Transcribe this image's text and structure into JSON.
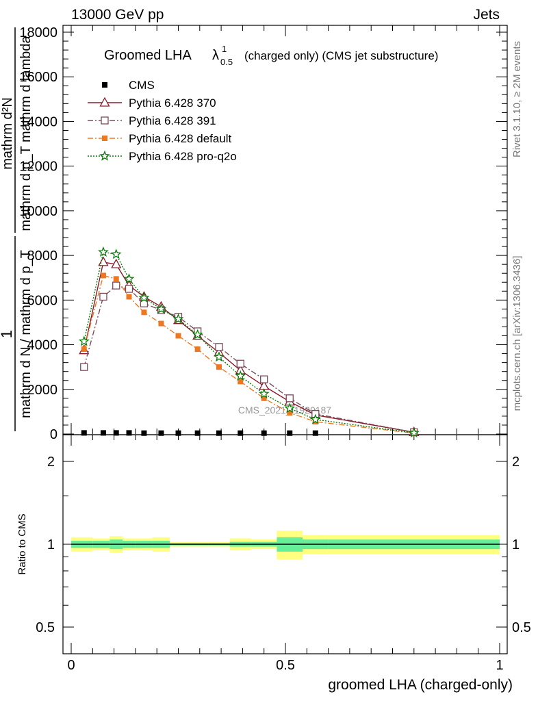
{
  "header": {
    "left": "13000 GeV pp",
    "right": "Jets"
  },
  "side": {
    "right_top": "Rivet 3.1.10, ≥ 2M events",
    "right_bottom": "mcplots.cern.ch [arXiv:1306.3436]"
  },
  "watermark": "CMS_2021_I1920187",
  "main_title": {
    "prefix": "Groomed LHA",
    "lambda": "λ",
    "sup": "1",
    "sub": "0.5",
    "suffix": "(charged only) (CMS jet substructure)"
  },
  "top_ylabel": {
    "numerator": "mathrm d²N",
    "denominator": "mathrm d p_T mathrm d lambda",
    "left_num": "1",
    "left_den": "mathrm d N / mathrm d p_T"
  },
  "chart_data": [
    {
      "type": "line",
      "panel": "main",
      "x": [
        0.03,
        0.075,
        0.105,
        0.135,
        0.17,
        0.21,
        0.25,
        0.295,
        0.345,
        0.395,
        0.45,
        0.51,
        0.57,
        0.8
      ],
      "xlim": [
        0,
        1
      ],
      "ylim": [
        0,
        18000
      ],
      "yticks": [
        0,
        2000,
        4000,
        6000,
        8000,
        10000,
        12000,
        14000,
        16000,
        18000
      ],
      "ytick_labels": [
        "0",
        "2000",
        "4000",
        "6000",
        "8000",
        "10000",
        "12000",
        "14000",
        "16000",
        "18000"
      ],
      "legend_position": "top-left",
      "series": [
        {
          "name": "CMS",
          "color": "#000000",
          "style": "none",
          "marker": "filled-square",
          "values": [
            50,
            50,
            50,
            50,
            40,
            40,
            40,
            40,
            40,
            40,
            40,
            40,
            40,
            null
          ]
        },
        {
          "name": "Pythia 6.428 370",
          "color": "#8b1a2b",
          "style": "solid",
          "marker": "open-triangle",
          "values": [
            3750,
            7700,
            7600,
            6650,
            6150,
            5700,
            5100,
            4400,
            3650,
            2850,
            2150,
            1450,
            850,
            80
          ]
        },
        {
          "name": "Pythia 6.428 391",
          "color": "#7b4a5a",
          "style": "dashdot",
          "marker": "open-square",
          "values": [
            3000,
            6150,
            6650,
            6500,
            5850,
            5550,
            5250,
            4600,
            3900,
            3150,
            2450,
            1600,
            900,
            80
          ]
        },
        {
          "name": "Pythia 6.428 default",
          "color": "#ee7722",
          "style": "dashdot",
          "marker": "filled-square",
          "values": [
            3800,
            7100,
            6950,
            6150,
            5450,
            4950,
            4400,
            3800,
            3000,
            2350,
            1600,
            950,
            550,
            40
          ]
        },
        {
          "name": "Pythia 6.428 pro-q2o",
          "color": "#0a7a0a",
          "style": "dotted",
          "marker": "star",
          "values": [
            4150,
            8150,
            8050,
            6950,
            6100,
            5600,
            5150,
            4450,
            3450,
            2600,
            1800,
            1150,
            650,
            50
          ]
        }
      ]
    },
    {
      "type": "line",
      "panel": "ratio",
      "ylabel": "Ratio to CMS",
      "xlabel": "groomed LHA (charged-only)",
      "xlim": [
        0,
        1
      ],
      "ylim": [
        0.5,
        2
      ],
      "scale": "log",
      "yticks": [
        0.5,
        1,
        2
      ],
      "ytick_labels": [
        "0.5",
        "1",
        "2"
      ],
      "xticks": [
        0,
        0.5,
        1
      ],
      "xtick_labels": [
        "0",
        "0.5",
        "1"
      ],
      "bins": [
        0,
        0.05,
        0.09,
        0.12,
        0.15,
        0.19,
        0.23,
        0.27,
        0.32,
        0.37,
        0.42,
        0.48,
        0.54,
        0.6,
        1.0
      ],
      "band_outer": [
        0.06,
        0.05,
        0.07,
        0.05,
        0.05,
        0.06,
        0.02,
        0.02,
        0.02,
        0.05,
        0.04,
        0.12,
        0.08,
        0.08
      ],
      "band_inner": [
        0.03,
        0.03,
        0.04,
        0.03,
        0.03,
        0.03,
        0.01,
        0.01,
        0.01,
        0.02,
        0.02,
        0.06,
        0.04,
        0.04
      ],
      "band_colors": {
        "outer": "#ffff80",
        "inner": "#66ee99"
      },
      "reference_line": 1
    }
  ]
}
